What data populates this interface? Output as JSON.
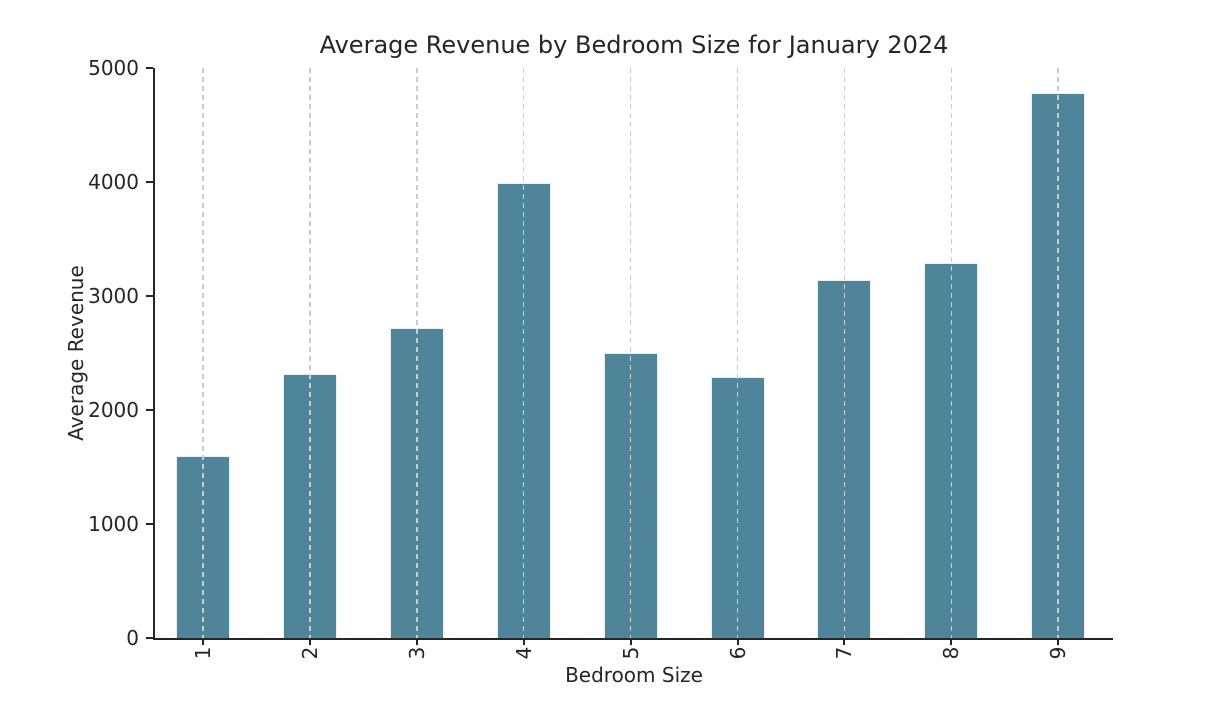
{
  "chart_data": {
    "type": "bar",
    "title": "Average Revenue by Bedroom Size for January 2024",
    "xlabel": "Bedroom Size",
    "ylabel": "Average Revenue",
    "categories": [
      "1",
      "2",
      "3",
      "4",
      "5",
      "6",
      "7",
      "8",
      "9"
    ],
    "values": [
      1600,
      2320,
      2720,
      3990,
      2500,
      2290,
      3140,
      3290,
      4780
    ],
    "ylim": [
      0,
      5000
    ],
    "yticks": [
      0,
      1000,
      2000,
      3000,
      4000,
      5000
    ],
    "grid": {
      "axis": "x",
      "style": "dashed",
      "color": "#cccccc"
    },
    "legend": "none",
    "xtick_rotation": 90,
    "colors": {
      "bar": "#4f8598",
      "bar_edge": "#e9f0f2",
      "axis": "#262626",
      "text": "#262626",
      "background": "#ffffff"
    }
  }
}
